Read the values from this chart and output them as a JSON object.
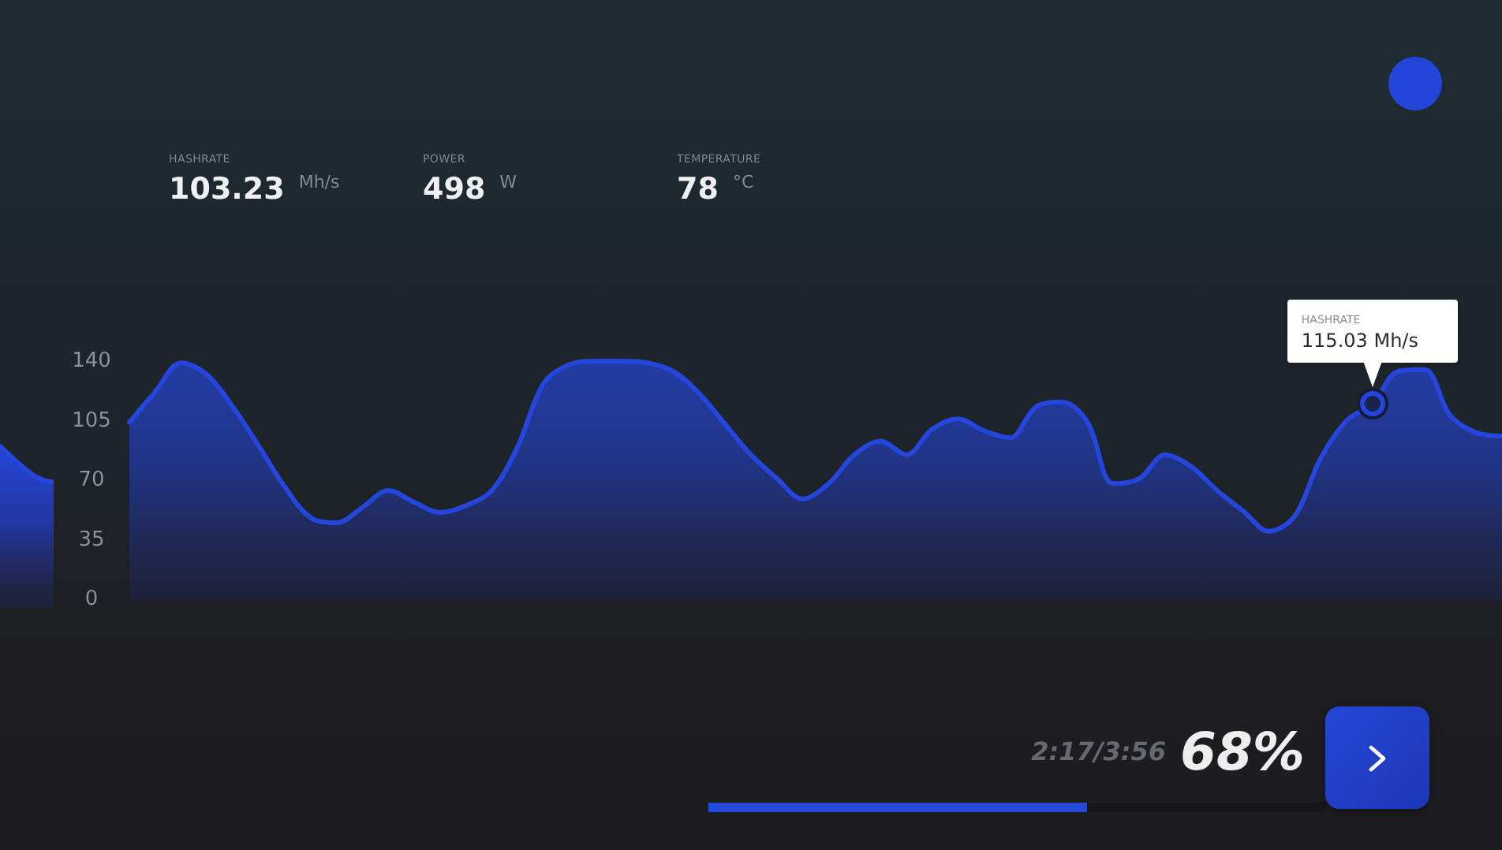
{
  "chart_data": {
    "type": "area",
    "categories": [
      null,
      null,
      null,
      null,
      null,
      null,
      null,
      null,
      null,
      null,
      null,
      null,
      null,
      null,
      null,
      null,
      null,
      null,
      null,
      null,
      null,
      null,
      null,
      null,
      null,
      null,
      null,
      null,
      null,
      null,
      null,
      null,
      null,
      null,
      null,
      null,
      null,
      null,
      null,
      null,
      null,
      null,
      null,
      null,
      null,
      null,
      null,
      null,
      null,
      null,
      null,
      null,
      null,
      null
    ],
    "values": [
      104,
      122,
      139,
      132,
      113,
      90,
      66,
      48,
      45,
      54,
      64,
      57,
      51,
      55,
      64,
      90,
      127,
      138,
      140,
      140,
      139,
      134,
      121,
      103,
      85,
      71,
      59,
      68,
      85,
      93,
      85,
      100,
      106,
      99,
      95,
      113,
      116,
      104,
      68,
      71,
      85,
      78,
      64,
      52,
      40,
      49,
      83,
      105,
      115.03,
      134,
      135,
      108,
      98,
      96
    ],
    "value_labels": [
      null,
      null,
      null,
      null,
      null,
      null,
      null,
      null,
      null,
      null,
      null,
      null,
      null,
      null,
      null,
      null,
      null,
      null,
      null,
      null,
      null,
      null,
      null,
      null,
      null,
      null,
      null,
      null,
      null,
      null,
      null,
      null,
      null,
      null,
      null,
      null,
      null,
      null,
      null,
      null,
      null,
      null,
      null,
      null,
      null,
      null,
      null,
      null,
      "HASHRATE\n115.03 Mh/s",
      null,
      null,
      null,
      null,
      null
    ],
    "color": "#2446dc",
    "ylim": [
      0,
      140
    ],
    "yticks": [
      0,
      35,
      70,
      105,
      140
    ],
    "tick_labels": "y",
    "marker": "none",
    "annotations": [
      "HASHRATE",
      "103.23",
      "Mh/s",
      "POWER",
      "498",
      "W",
      "TEMPERATURE",
      "78",
      "°C",
      "2:17/3:56",
      "68%"
    ]
  }
}
